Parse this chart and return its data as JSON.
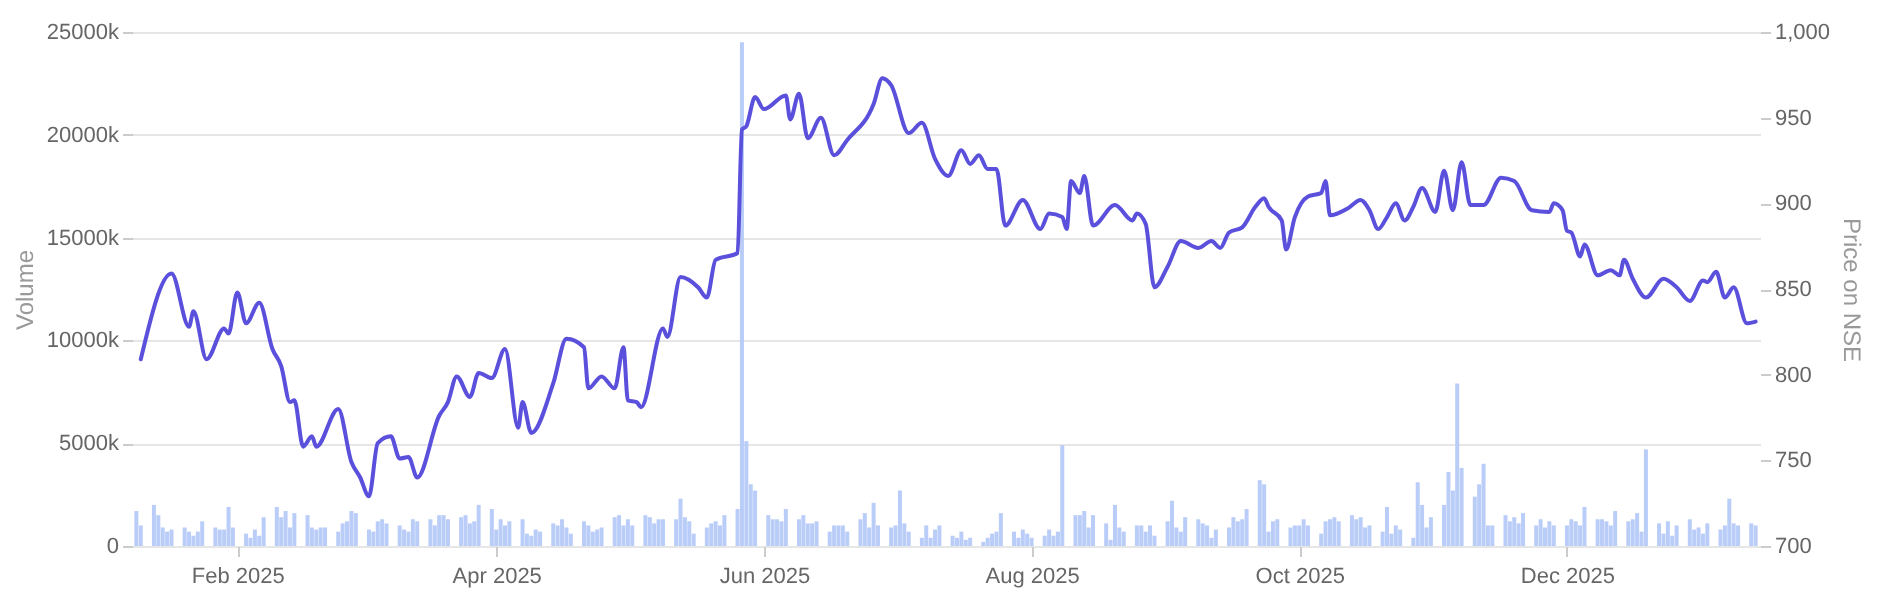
{
  "chart_data": {
    "type": "bar",
    "ylabel": "Volume",
    "y2label": "Price on NSE",
    "grid": "y",
    "xlim": [
      "2025-01-08",
      "2026-01-14"
    ],
    "xticks": [
      {
        "value": "2025-02-01",
        "label": "Feb 2025"
      },
      {
        "value": "2025-04-01",
        "label": "Apr 2025"
      },
      {
        "value": "2025-06-01",
        "label": "Jun 2025"
      },
      {
        "value": "2025-08-01",
        "label": "Aug 2025"
      },
      {
        "value": "2025-10-01",
        "label": "Oct 2025"
      },
      {
        "value": "2025-12-01",
        "label": "Dec 2025"
      }
    ],
    "ylim": [
      0,
      25000
    ],
    "yticks": [
      0,
      {
        "value": 5000,
        "label": "5000k"
      },
      {
        "value": 10000,
        "label": "10000k"
      },
      {
        "value": 15000,
        "label": "15000k"
      },
      {
        "value": 20000,
        "label": "20000k"
      },
      {
        "value": 25000,
        "label": "25000k"
      }
    ],
    "y2lim": [
      700,
      1000
    ],
    "y2ticks": [
      700,
      750,
      800,
      850,
      900,
      950,
      {
        "value": 1000,
        "label": "1,000"
      }
    ],
    "series": [
      {
        "color": "#b9cdf8",
        "x": [
          "2025-01-09",
          "2025-01-10",
          "2025-01-13",
          "2025-01-14",
          "2025-01-15",
          "2025-01-16",
          "2025-01-17",
          "2025-01-20",
          "2025-01-21",
          "2025-01-22",
          "2025-01-23",
          "2025-01-24",
          "2025-01-27",
          "2025-01-28",
          "2025-01-29",
          "2025-01-30",
          "2025-01-31",
          "2025-02-03",
          "2025-02-04",
          "2025-02-05",
          "2025-02-06",
          "2025-02-07",
          "2025-02-10",
          "2025-02-11",
          "2025-02-12",
          "2025-02-13",
          "2025-02-14",
          "2025-02-17",
          "2025-02-18",
          "2025-02-19",
          "2025-02-20",
          "2025-02-21",
          "2025-02-24",
          "2025-02-25",
          "2025-02-26",
          "2025-02-27",
          "2025-02-28",
          "2025-03-03",
          "2025-03-04",
          "2025-03-05",
          "2025-03-06",
          "2025-03-07",
          "2025-03-10",
          "2025-03-11",
          "2025-03-12",
          "2025-03-13",
          "2025-03-14",
          "2025-03-17",
          "2025-03-18",
          "2025-03-19",
          "2025-03-20",
          "2025-03-21",
          "2025-03-24",
          "2025-03-25",
          "2025-03-26",
          "2025-03-27",
          "2025-03-28",
          "2025-03-31",
          "2025-04-01",
          "2025-04-02",
          "2025-04-03",
          "2025-04-04",
          "2025-04-07",
          "2025-04-08",
          "2025-04-09",
          "2025-04-10",
          "2025-04-11",
          "2025-04-14",
          "2025-04-15",
          "2025-04-16",
          "2025-04-17",
          "2025-04-18",
          "2025-04-21",
          "2025-04-22",
          "2025-04-23",
          "2025-04-24",
          "2025-04-25",
          "2025-04-28",
          "2025-04-29",
          "2025-04-30",
          "2025-05-01",
          "2025-05-02",
          "2025-05-05",
          "2025-05-06",
          "2025-05-07",
          "2025-05-08",
          "2025-05-09",
          "2025-05-12",
          "2025-05-13",
          "2025-05-14",
          "2025-05-15",
          "2025-05-16",
          "2025-05-19",
          "2025-05-20",
          "2025-05-21",
          "2025-05-22",
          "2025-05-23",
          "2025-05-26",
          "2025-05-27",
          "2025-05-28",
          "2025-05-29",
          "2025-05-30",
          "2025-06-02",
          "2025-06-03",
          "2025-06-04",
          "2025-06-05",
          "2025-06-06",
          "2025-06-09",
          "2025-06-10",
          "2025-06-11",
          "2025-06-12",
          "2025-06-13",
          "2025-06-16",
          "2025-06-17",
          "2025-06-18",
          "2025-06-19",
          "2025-06-20",
          "2025-06-23",
          "2025-06-24",
          "2025-06-25",
          "2025-06-26",
          "2025-06-27",
          "2025-06-30",
          "2025-07-01",
          "2025-07-02",
          "2025-07-03",
          "2025-07-04",
          "2025-07-07",
          "2025-07-08",
          "2025-07-09",
          "2025-07-10",
          "2025-07-11",
          "2025-07-14",
          "2025-07-15",
          "2025-07-16",
          "2025-07-17",
          "2025-07-18",
          "2025-07-21",
          "2025-07-22",
          "2025-07-23",
          "2025-07-24",
          "2025-07-25",
          "2025-07-28",
          "2025-07-29",
          "2025-07-30",
          "2025-07-31",
          "2025-08-01",
          "2025-08-04",
          "2025-08-05",
          "2025-08-06",
          "2025-08-07",
          "2025-08-08",
          "2025-08-11",
          "2025-08-12",
          "2025-08-13",
          "2025-08-14",
          "2025-08-15",
          "2025-08-18",
          "2025-08-19",
          "2025-08-20",
          "2025-08-21",
          "2025-08-22",
          "2025-08-25",
          "2025-08-26",
          "2025-08-27",
          "2025-08-28",
          "2025-08-29",
          "2025-09-01",
          "2025-09-02",
          "2025-09-03",
          "2025-09-04",
          "2025-09-05",
          "2025-09-08",
          "2025-09-09",
          "2025-09-10",
          "2025-09-11",
          "2025-09-12",
          "2025-09-15",
          "2025-09-16",
          "2025-09-17",
          "2025-09-18",
          "2025-09-19",
          "2025-09-22",
          "2025-09-23",
          "2025-09-24",
          "2025-09-25",
          "2025-09-26",
          "2025-09-29",
          "2025-09-30",
          "2025-10-01",
          "2025-10-02",
          "2025-10-03",
          "2025-10-06",
          "2025-10-07",
          "2025-10-08",
          "2025-10-09",
          "2025-10-10",
          "2025-10-13",
          "2025-10-14",
          "2025-10-15",
          "2025-10-16",
          "2025-10-17",
          "2025-10-20",
          "2025-10-21",
          "2025-10-22",
          "2025-10-23",
          "2025-10-24",
          "2025-10-27",
          "2025-10-28",
          "2025-10-29",
          "2025-10-30",
          "2025-10-31",
          "2025-11-03",
          "2025-11-04",
          "2025-11-05",
          "2025-11-06",
          "2025-11-07",
          "2025-11-10",
          "2025-11-11",
          "2025-11-12",
          "2025-11-13",
          "2025-11-14",
          "2025-11-17",
          "2025-11-18",
          "2025-11-19",
          "2025-11-20",
          "2025-11-21",
          "2025-11-24",
          "2025-11-25",
          "2025-11-26",
          "2025-11-27",
          "2025-11-28",
          "2025-12-01",
          "2025-12-02",
          "2025-12-03",
          "2025-12-04",
          "2025-12-05",
          "2025-12-08",
          "2025-12-09",
          "2025-12-10",
          "2025-12-11",
          "2025-12-12",
          "2025-12-15",
          "2025-12-16",
          "2025-12-17",
          "2025-12-18",
          "2025-12-19",
          "2025-12-22",
          "2025-12-23",
          "2025-12-24",
          "2025-12-25",
          "2025-12-26",
          "2025-12-29",
          "2025-12-30",
          "2025-12-31",
          "2026-01-01",
          "2026-01-02",
          "2026-01-05",
          "2026-01-06",
          "2026-01-07",
          "2026-01-08",
          "2026-01-09",
          "2026-01-12",
          "2026-01-13"
        ],
        "values": [
          1700,
          1000,
          2000,
          1500,
          900,
          700,
          800,
          900,
          700,
          500,
          700,
          1200,
          900,
          800,
          800,
          1900,
          900,
          600,
          400,
          800,
          500,
          1400,
          1900,
          1400,
          1700,
          900,
          1600,
          1500,
          900,
          800,
          900,
          900,
          700,
          1100,
          1200,
          1700,
          1600,
          800,
          700,
          1200,
          1300,
          1100,
          1000,
          800,
          700,
          1300,
          1200,
          1300,
          1000,
          1500,
          1500,
          1300,
          1400,
          1500,
          1100,
          1200,
          2000,
          1800,
          800,
          1300,
          1000,
          1200,
          1300,
          600,
          500,
          800,
          700,
          1100,
          1000,
          1300,
          900,
          600,
          1200,
          1000,
          700,
          800,
          900,
          1400,
          1500,
          1000,
          1300,
          1000,
          1500,
          1400,
          1100,
          1300,
          1300,
          1300,
          2300,
          1400,
          1200,
          600,
          900,
          1100,
          1200,
          1000,
          1500,
          1800,
          24500,
          5100,
          3000,
          2700,
          1500,
          1300,
          1300,
          1200,
          1800,
          1300,
          1500,
          1100,
          1100,
          1200,
          700,
          1000,
          1000,
          1000,
          700,
          1300,
          1600,
          900,
          2100,
          1000,
          900,
          1000,
          2700,
          1100,
          700,
          400,
          1000,
          400,
          800,
          1000,
          500,
          400,
          700,
          300,
          400,
          200,
          400,
          600,
          700,
          1600,
          700,
          400,
          800,
          600,
          400,
          500,
          800,
          500,
          700,
          4900,
          1500,
          1500,
          1700,
          900,
          1500,
          1100,
          300,
          2000,
          900,
          700,
          1000,
          1000,
          700,
          1000,
          500,
          1200,
          2200,
          900,
          700,
          1400,
          1300,
          1100,
          1000,
          400,
          800,
          900,
          1400,
          1200,
          1300,
          1800,
          3200,
          3000,
          700,
          1200,
          1300,
          900,
          1000,
          1000,
          1300,
          1000,
          600,
          1200,
          1300,
          1400,
          1200,
          1500,
          1300,
          1400,
          900,
          1000,
          700,
          1900,
          600,
          1000,
          800,
          400,
          3100,
          2000,
          900,
          1400,
          2000,
          3600,
          2700,
          7900,
          3800,
          2400,
          3000,
          4000,
          1000,
          1000,
          1500,
          1200,
          1400,
          1100,
          1600,
          1000,
          1300,
          900,
          1200,
          1000,
          1000,
          1300,
          1200,
          1000,
          1900,
          1300,
          1300,
          1200,
          1000,
          1700,
          1200,
          1300,
          1600,
          700,
          4700,
          1100,
          600,
          1200,
          500,
          1000,
          1300,
          800,
          900,
          600,
          1100,
          800,
          1000,
          2300,
          1100,
          1000,
          1100,
          1000
        ]
      },
      {
        "type": "line",
        "axis": "y2",
        "color": "#5a50dc",
        "x": [
          "2025-01-10",
          "2025-01-17",
          "2025-01-21",
          "2025-01-22",
          "2025-01-25",
          "2025-01-29",
          "2025-01-30",
          "2025-02-01",
          "2025-02-03",
          "2025-02-06",
          "2025-02-09",
          "2025-02-11",
          "2025-02-13",
          "2025-02-14",
          "2025-02-16",
          "2025-02-18",
          "2025-02-19",
          "2025-02-24",
          "2025-02-27",
          "2025-03-01",
          "2025-03-03",
          "2025-03-05",
          "2025-03-08",
          "2025-03-10",
          "2025-03-12",
          "2025-03-14",
          "2025-03-19",
          "2025-03-21",
          "2025-03-23",
          "2025-03-26",
          "2025-03-28",
          "2025-03-31",
          "2025-04-03",
          "2025-04-06",
          "2025-04-07",
          "2025-04-09",
          "2025-04-14",
          "2025-04-17",
          "2025-04-21",
          "2025-04-22",
          "2025-04-25",
          "2025-04-28",
          "2025-04-30",
          "2025-05-01",
          "2025-05-03",
          "2025-05-04",
          "2025-05-09",
          "2025-05-10",
          "2025-05-13",
          "2025-05-17",
          "2025-05-19",
          "2025-05-21",
          "2025-05-26",
          "2025-05-27",
          "2025-05-28",
          "2025-05-30",
          "2025-06-01",
          "2025-06-06",
          "2025-06-07",
          "2025-06-09",
          "2025-06-11",
          "2025-06-14",
          "2025-06-17",
          "2025-06-20",
          "2025-06-26",
          "2025-06-28",
          "2025-06-30",
          "2025-07-04",
          "2025-07-07",
          "2025-07-10",
          "2025-07-13",
          "2025-07-16",
          "2025-07-18",
          "2025-07-20",
          "2025-07-22",
          "2025-07-24",
          "2025-07-26",
          "2025-07-30",
          "2025-08-03",
          "2025-08-05",
          "2025-08-08",
          "2025-08-09",
          "2025-08-10",
          "2025-08-12",
          "2025-08-13",
          "2025-08-15",
          "2025-08-20",
          "2025-08-24",
          "2025-08-25",
          "2025-08-27",
          "2025-08-29",
          "2025-09-01",
          "2025-09-04",
          "2025-09-08",
          "2025-09-11",
          "2025-09-13",
          "2025-09-15",
          "2025-09-18",
          "2025-09-21",
          "2025-09-23",
          "2025-09-24",
          "2025-09-27",
          "2025-09-28",
          "2025-09-30",
          "2025-10-03",
          "2025-10-06",
          "2025-10-07",
          "2025-10-08",
          "2025-10-12",
          "2025-10-15",
          "2025-10-17",
          "2025-10-19",
          "2025-10-21",
          "2025-10-23",
          "2025-10-25",
          "2025-10-27",
          "2025-10-29",
          "2025-11-01",
          "2025-11-03",
          "2025-11-05",
          "2025-11-07",
          "2025-11-09",
          "2025-11-12",
          "2025-11-16",
          "2025-11-19",
          "2025-11-23",
          "2025-11-27",
          "2025-11-28",
          "2025-11-30",
          "2025-12-01",
          "2025-12-02",
          "2025-12-04",
          "2025-12-05",
          "2025-12-08",
          "2025-12-11",
          "2025-12-13",
          "2025-12-14",
          "2025-12-16",
          "2025-12-19",
          "2025-12-23",
          "2025-12-26",
          "2025-12-29",
          "2026-01-01",
          "2026-01-02",
          "2026-01-04",
          "2026-01-06",
          "2026-01-08",
          "2026-01-11",
          "2026-01-13"
        ],
        "values": [
          809,
          859,
          828,
          837,
          809,
          827,
          824,
          848,
          830,
          842,
          815,
          805,
          784,
          785,
          758,
          764,
          758,
          780,
          749,
          740,
          729,
          760,
          764,
          751,
          752,
          740,
          776,
          784,
          799,
          787,
          801,
          798,
          815,
          769,
          784,
          766,
          795,
          821,
          816,
          792,
          799,
          792,
          816,
          785,
          784,
          781,
          827,
          822,
          857,
          851,
          845,
          867,
          871,
          943,
          945,
          962,
          955,
          963,
          949,
          964,
          938,
          950,
          928,
          937,
          958,
          973,
          969,
          941,
          947,
          926,
          916,
          931,
          923,
          928,
          920,
          920,
          887,
          902,
          885,
          894,
          892,
          885,
          913,
          906,
          916,
          887,
          899,
          890,
          894,
          888,
          851,
          863,
          878,
          874,
          878,
          874,
          883,
          886,
          898,
          903,
          898,
          890,
          873,
          892,
          904,
          906,
          913,
          893,
          897,
          902,
          896,
          885,
          892,
          900,
          890,
          898,
          909,
          895,
          919,
          896,
          924,
          899,
          899,
          915,
          913,
          896,
          895,
          900,
          896,
          884,
          883,
          869,
          876,
          858,
          861,
          858,
          867,
          856,
          845,
          856,
          851,
          843,
          855,
          854,
          860,
          845,
          851,
          830,
          831
        ]
      }
    ]
  }
}
